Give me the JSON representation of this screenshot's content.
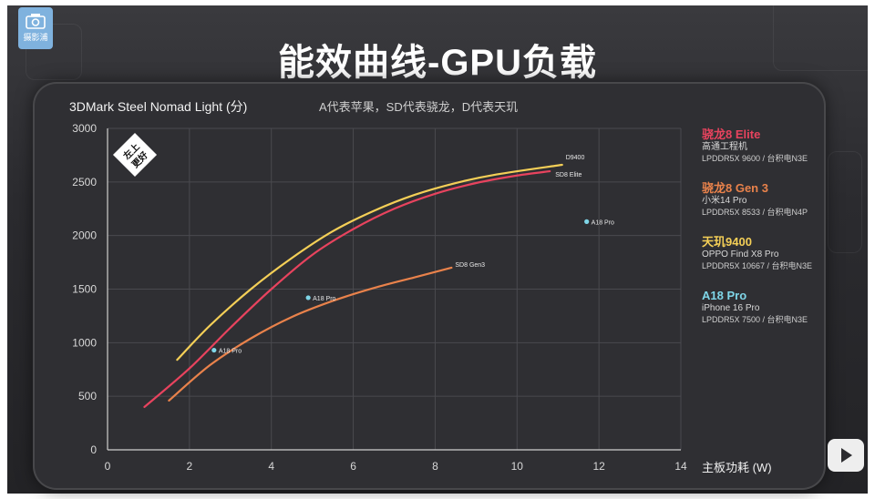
{
  "header": {
    "logo_text": "摄影浦",
    "title": "能效曲线-GPU负载"
  },
  "chart_data": {
    "type": "line",
    "title": "3DMark Steel Nomad Light (分)",
    "subtitle": "A代表苹果，SD代表骁龙，D代表天玑",
    "xlabel": "主板功耗 (W)",
    "ylabel": "3DMark Steel Nomad Light (分)",
    "xlim": [
      0,
      14
    ],
    "ylim": [
      0,
      3000
    ],
    "x_ticks": [
      0,
      2,
      4,
      6,
      8,
      10,
      12,
      14
    ],
    "y_ticks": [
      0,
      500,
      1000,
      1500,
      2000,
      2500,
      3000
    ],
    "grid": true,
    "legend_position": "right",
    "badge": {
      "line1": "左上",
      "line2": "更好"
    },
    "series": [
      {
        "name": "骁龙8 Elite",
        "color": "#e8435e",
        "end_label": "SD8 Elite",
        "points": [
          [
            0.9,
            400
          ],
          [
            2,
            760
          ],
          [
            3,
            1140
          ],
          [
            4,
            1500
          ],
          [
            5,
            1820
          ],
          [
            6,
            2060
          ],
          [
            7,
            2250
          ],
          [
            8,
            2390
          ],
          [
            9,
            2490
          ],
          [
            10,
            2560
          ],
          [
            10.8,
            2600
          ]
        ]
      },
      {
        "name": "骁龙8 Gen 3",
        "color": "#e9824b",
        "end_label": "SD8 Gen3",
        "points": [
          [
            1.5,
            460
          ],
          [
            2.5,
            790
          ],
          [
            3.5,
            1040
          ],
          [
            4.5,
            1240
          ],
          [
            5.5,
            1390
          ],
          [
            6.5,
            1510
          ],
          [
            7.5,
            1610
          ],
          [
            8.4,
            1700
          ]
        ]
      },
      {
        "name": "天玑9400",
        "color": "#f4cf57",
        "end_label": "D9400",
        "points": [
          [
            1.7,
            840
          ],
          [
            2.5,
            1160
          ],
          [
            3.5,
            1500
          ],
          [
            4.5,
            1790
          ],
          [
            5.5,
            2040
          ],
          [
            6.5,
            2230
          ],
          [
            7.5,
            2380
          ],
          [
            8.5,
            2490
          ],
          [
            9.5,
            2570
          ],
          [
            11.1,
            2660
          ]
        ]
      },
      {
        "name": "A18 Pro",
        "color": "#7fd6e8",
        "type": "scatter",
        "point_label": "A18 Pro",
        "points": [
          [
            2.6,
            930
          ],
          [
            4.9,
            1420
          ],
          [
            11.7,
            2130
          ]
        ]
      }
    ]
  },
  "legend": [
    {
      "name": "骁龙8 Elite",
      "device": "高通工程机",
      "spec": "LPDDR5X 9600 / 台积电N3E",
      "color": "#e8435e"
    },
    {
      "name": "骁龙8 Gen 3",
      "device": "小米14 Pro",
      "spec": "LPDDR5X 8533 / 台积电N4P",
      "color": "#e9824b"
    },
    {
      "name": "天玑9400",
      "device": "OPPO Find X8 Pro",
      "spec": "LPDDR5X 10667 / 台积电N3E",
      "color": "#f4cf57"
    },
    {
      "name": "A18 Pro",
      "device": "iPhone 16 Pro",
      "spec": "LPDDR5X 7500 / 台积电N3E",
      "color": "#7fd6e8"
    }
  ]
}
